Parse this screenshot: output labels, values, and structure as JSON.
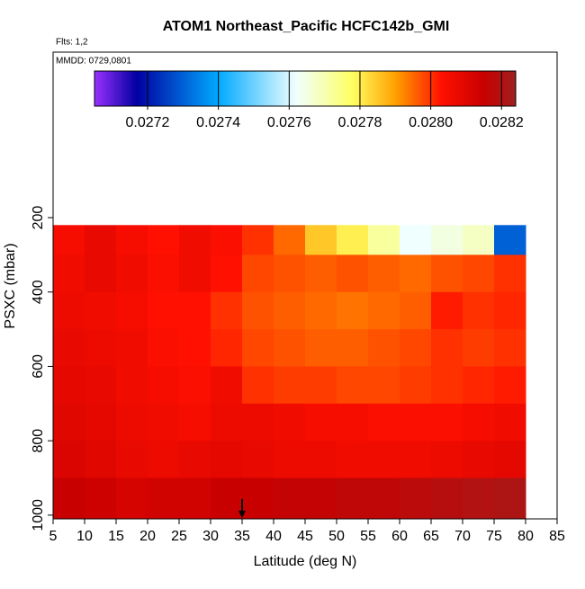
{
  "chart_data": {
    "type": "heatmap",
    "title": "ATOM1 Northeast_Pacific HCFC142b_GMI",
    "subtitle": "Flts: 1,2",
    "annotation": "MMDD: 0729,0801",
    "x_label": "Latitude (deg N)",
    "y_label": "PSXC (mbar)",
    "xlim": [
      5,
      85
    ],
    "xticks": [
      5,
      10,
      15,
      20,
      25,
      30,
      35,
      40,
      45,
      50,
      55,
      60,
      65,
      70,
      75,
      80,
      85
    ],
    "ylim": [
      1010,
      -245
    ],
    "yticks": [
      200,
      400,
      600,
      800,
      1000
    ],
    "x_edges": [
      5,
      10,
      15,
      20,
      25,
      30,
      35,
      40,
      45,
      50,
      55,
      60,
      65,
      70,
      75,
      80
    ],
    "y_edges": [
      220,
      300,
      400,
      500,
      600,
      700,
      800,
      900,
      1010
    ],
    "z": [
      [
        0.02805,
        0.02808,
        0.02805,
        0.02803,
        0.02806,
        0.02804,
        0.028,
        0.02795,
        0.02785,
        0.0278,
        0.02772,
        0.02762,
        0.02765,
        0.02768,
        0.0273
      ],
      [
        0.02806,
        0.02808,
        0.02806,
        0.02804,
        0.02806,
        0.02803,
        0.02798,
        0.02797,
        0.02796,
        0.02797,
        0.02796,
        0.02795,
        0.02797,
        0.02798,
        0.028
      ],
      [
        0.02807,
        0.02806,
        0.02805,
        0.02803,
        0.02803,
        0.028,
        0.02797,
        0.02796,
        0.02795,
        0.02794,
        0.02795,
        0.02796,
        0.02802,
        0.028,
        0.02801
      ],
      [
        0.02808,
        0.02807,
        0.02806,
        0.02804,
        0.02803,
        0.02801,
        0.02798,
        0.02797,
        0.02796,
        0.02796,
        0.02797,
        0.02798,
        0.028,
        0.02799,
        0.028
      ],
      [
        0.02809,
        0.02808,
        0.02806,
        0.02805,
        0.02804,
        0.02806,
        0.028,
        0.02799,
        0.02799,
        0.02798,
        0.02798,
        0.02799,
        0.028,
        0.02801,
        0.02802
      ],
      [
        0.0281,
        0.02809,
        0.02807,
        0.02806,
        0.02805,
        0.02807,
        0.02807,
        0.02806,
        0.02805,
        0.02805,
        0.02804,
        0.02804,
        0.02804,
        0.02805,
        0.02806
      ],
      [
        0.02811,
        0.0281,
        0.02808,
        0.02807,
        0.02808,
        0.02809,
        0.02808,
        0.02807,
        0.02807,
        0.02806,
        0.02806,
        0.02806,
        0.02807,
        0.02808,
        0.02809
      ],
      [
        0.02815,
        0.02814,
        0.02812,
        0.02813,
        0.02813,
        0.02815,
        0.02815,
        0.02816,
        0.02816,
        0.02817,
        0.02817,
        0.02818,
        0.02819,
        0.0282,
        0.02821
      ]
    ],
    "colorbar_lim": [
      0.02705,
      0.02824
    ],
    "colorbar_ticks": [
      0.0272,
      0.0274,
      0.0276,
      0.0278,
      {
        "value": 0.028,
        "label": "0.0280"
      },
      0.0282
    ],
    "colorscale": [
      [
        0.02705,
        "#9b30ff"
      ],
      [
        0.02717,
        "#0000a0"
      ],
      [
        0.0274,
        "#00aaff"
      ],
      [
        0.02762,
        "#f0ffff"
      ],
      [
        0.02778,
        "#ffff60"
      ],
      [
        0.0279,
        "#ffa000"
      ],
      [
        0.02803,
        "#ff1000"
      ],
      [
        0.02815,
        "#c80000"
      ],
      [
        0.02824,
        "#a02020"
      ]
    ],
    "arrow_x": 35
  }
}
